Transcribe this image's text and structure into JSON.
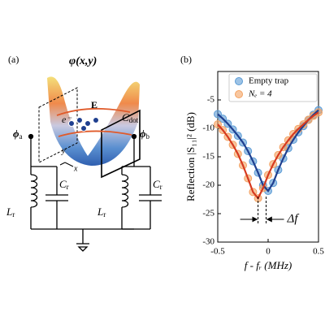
{
  "diagram": {
    "panel_label": "(a)",
    "potential": "φ(x,y)",
    "field": "E",
    "electron": "e⁻",
    "cdot": {
      "main": "C",
      "sub": "dot"
    },
    "phi_a": {
      "main": "ϕ",
      "sub": "a"
    },
    "phi_b": {
      "main": "ϕ",
      "sub": "b"
    },
    "left_l": {
      "main": "L",
      "sub": "r"
    },
    "left_c": {
      "main": "C",
      "sub": "r"
    },
    "right_l": {
      "main": "L",
      "sub": "r"
    },
    "right_c": {
      "main": "C",
      "sub": "r"
    },
    "axis_y": "y",
    "axis_x": "x"
  },
  "chart_data": {
    "type": "scatter",
    "panel_label": "(b)",
    "x_label": "f - fᵣ (MHz)",
    "y_label": "Reflection |S₁₁|² (dB)",
    "xlim": [
      -0.5,
      0.5
    ],
    "ylim": [
      -30,
      0
    ],
    "xticks": [
      -0.5,
      0,
      0.5
    ],
    "yticks": [
      -30,
      -25,
      -20,
      -15,
      -10,
      -5
    ],
    "legend": "upper right",
    "series": [
      {
        "name": "Empty trap",
        "color": "#5b9bd5",
        "line_color": "#1f3f8f",
        "x": [
          -0.5,
          -0.45,
          -0.4,
          -0.35,
          -0.3,
          -0.25,
          -0.2,
          -0.15,
          -0.1,
          -0.05,
          0,
          0.05,
          0.1,
          0.15,
          0.2,
          0.25,
          0.3,
          0.35,
          0.4,
          0.45,
          0.5
        ],
        "values": [
          -7.5,
          -8.3,
          -9.2,
          -10.2,
          -11.3,
          -12.5,
          -14,
          -15.8,
          -17.8,
          -20,
          -21,
          -19.6,
          -17.3,
          -15.3,
          -13.5,
          -12,
          -10.7,
          -9.6,
          -8.5,
          -7.6,
          -6.8
        ]
      },
      {
        "name": "Nₑ = 4",
        "color": "#f4a261",
        "line_color": "#d63a1f",
        "x": [
          -0.5,
          -0.45,
          -0.4,
          -0.35,
          -0.3,
          -0.25,
          -0.2,
          -0.15,
          -0.1,
          -0.05,
          0,
          0.05,
          0.1,
          0.15,
          0.2,
          0.25,
          0.3,
          0.35,
          0.4,
          0.45,
          0.5
        ],
        "values": [
          -9.3,
          -10.3,
          -11.5,
          -12.9,
          -14.5,
          -16.5,
          -18.8,
          -21.2,
          -22.3,
          -20.5,
          -18.2,
          -16.3,
          -14.7,
          -13.3,
          -12.1,
          -11,
          -10.1,
          -9.3,
          -8.5,
          -7.8,
          -7.2
        ]
      }
    ],
    "delta_f": {
      "label": "Δf",
      "x": [
        -0.1,
        -0.02
      ]
    }
  }
}
